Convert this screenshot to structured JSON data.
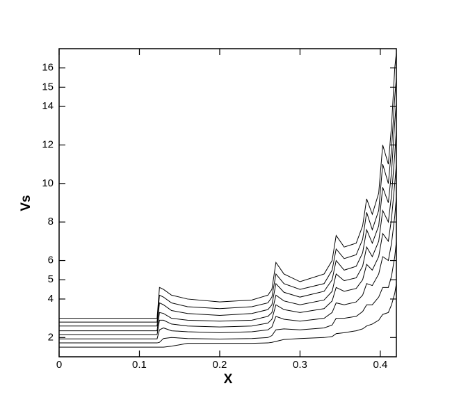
{
  "chart_data": {
    "type": "line",
    "x_label": "X",
    "y_label": "Vs",
    "xlim": [
      0,
      0.42
    ],
    "xticks": [
      0,
      0.1,
      0.2,
      0.3,
      0.4
    ],
    "ylim": [
      1,
      17
    ],
    "yticks": [
      2,
      4,
      5,
      6,
      8,
      10,
      12,
      14,
      15,
      16
    ],
    "x": [
      0,
      0.12,
      0.122,
      0.125,
      0.13,
      0.14,
      0.16,
      0.2,
      0.24,
      0.26,
      0.265,
      0.27,
      0.28,
      0.3,
      0.33,
      0.34,
      0.345,
      0.355,
      0.37,
      0.378,
      0.383,
      0.39,
      0.398,
      0.403,
      0.41,
      0.414,
      0.418,
      0.42
    ],
    "series": [
      {
        "color": "#000000",
        "values": [
          3.0,
          3.0,
          3.0,
          4.6,
          4.5,
          4.2,
          4.0,
          3.85,
          3.95,
          4.2,
          4.5,
          5.9,
          5.3,
          4.9,
          5.3,
          6.0,
          7.3,
          6.7,
          6.9,
          7.8,
          9.2,
          8.4,
          9.5,
          12.0,
          11.0,
          13.0,
          16.0,
          16.8
        ]
      },
      {
        "color": "#000000",
        "values": [
          2.8,
          2.8,
          2.8,
          4.2,
          4.1,
          3.8,
          3.6,
          3.5,
          3.6,
          3.8,
          4.1,
          5.3,
          4.8,
          4.5,
          4.8,
          5.5,
          6.6,
          6.1,
          6.3,
          7.1,
          8.5,
          7.6,
          8.6,
          11.0,
          10.0,
          11.8,
          14.5,
          15.5
        ]
      },
      {
        "color": "#000000",
        "values": [
          2.6,
          2.6,
          2.6,
          3.8,
          3.7,
          3.4,
          3.25,
          3.15,
          3.25,
          3.45,
          3.7,
          4.8,
          4.35,
          4.1,
          4.4,
          5.0,
          6.0,
          5.5,
          5.7,
          6.4,
          7.6,
          6.9,
          7.8,
          9.8,
          9.0,
          10.6,
          13.2,
          14.2
        ]
      },
      {
        "color": "#000000",
        "values": [
          2.35,
          2.35,
          2.35,
          3.3,
          3.25,
          3.0,
          2.9,
          2.85,
          2.9,
          3.1,
          3.3,
          4.2,
          3.9,
          3.7,
          3.95,
          4.4,
          5.3,
          4.95,
          5.1,
          5.7,
          6.7,
          6.2,
          7.0,
          8.6,
          8.0,
          9.4,
          11.5,
          12.8
        ]
      },
      {
        "color": "#000000",
        "values": [
          2.15,
          2.15,
          2.15,
          2.9,
          2.9,
          2.7,
          2.6,
          2.55,
          2.6,
          2.75,
          2.95,
          3.7,
          3.45,
          3.3,
          3.5,
          3.9,
          4.6,
          4.4,
          4.55,
          5.0,
          5.8,
          5.5,
          6.2,
          7.4,
          7.0,
          8.2,
          10.0,
          11.0
        ]
      },
      {
        "color": "#000000",
        "values": [
          1.93,
          1.93,
          1.93,
          2.4,
          2.5,
          2.35,
          2.3,
          2.25,
          2.3,
          2.4,
          2.55,
          3.1,
          2.95,
          2.85,
          3.0,
          3.3,
          3.8,
          3.7,
          3.85,
          4.2,
          4.8,
          4.7,
          5.3,
          6.2,
          6.0,
          6.9,
          8.3,
          9.3
        ]
      },
      {
        "color": "#000000",
        "values": [
          1.72,
          1.72,
          1.72,
          1.75,
          1.95,
          2.0,
          1.95,
          1.92,
          1.95,
          2.0,
          2.1,
          2.4,
          2.45,
          2.4,
          2.5,
          2.65,
          3.0,
          3.0,
          3.1,
          3.35,
          3.7,
          3.7,
          4.1,
          4.6,
          4.6,
          5.2,
          6.2,
          7.0
        ]
      },
      {
        "color": "#000000",
        "values": [
          1.5,
          1.5,
          1.5,
          1.5,
          1.5,
          1.55,
          1.7,
          1.7,
          1.7,
          1.72,
          1.75,
          1.8,
          1.9,
          1.95,
          2.0,
          2.05,
          2.2,
          2.25,
          2.35,
          2.45,
          2.6,
          2.7,
          2.9,
          3.2,
          3.3,
          3.7,
          4.3,
          4.8
        ]
      }
    ]
  }
}
